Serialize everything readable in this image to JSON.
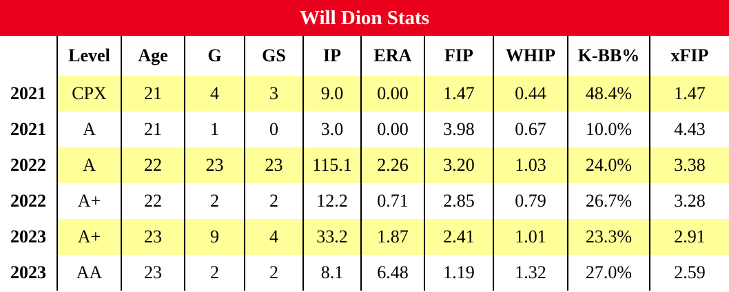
{
  "title": "Will Dion Stats",
  "columns": [
    "",
    "Level",
    "Age",
    "G",
    "GS",
    "IP",
    "ERA",
    "FIP",
    "WHIP",
    "K-BB%",
    "xFIP"
  ],
  "rows": [
    [
      "2021",
      "CPX",
      "21",
      "4",
      "3",
      "9.0",
      "0.00",
      "1.47",
      "0.44",
      "48.4%",
      "1.47"
    ],
    [
      "2021",
      "A",
      "21",
      "1",
      "0",
      "3.0",
      "0.00",
      "3.98",
      "0.67",
      "10.0%",
      "4.43"
    ],
    [
      "2022",
      "A",
      "22",
      "23",
      "23",
      "115.1",
      "2.26",
      "3.20",
      "1.03",
      "24.0%",
      "3.38"
    ],
    [
      "2022",
      "A+",
      "22",
      "2",
      "2",
      "12.2",
      "0.71",
      "2.85",
      "0.79",
      "26.7%",
      "3.28"
    ],
    [
      "2023",
      "A+",
      "23",
      "9",
      "4",
      "33.2",
      "1.87",
      "2.41",
      "1.01",
      "23.3%",
      "2.91"
    ],
    [
      "2023",
      "AA",
      "23",
      "2",
      "2",
      "8.1",
      "6.48",
      "1.19",
      "1.32",
      "27.0%",
      "2.59"
    ]
  ],
  "highlighted_rows": [
    0,
    2,
    4
  ],
  "colors": {
    "title_background": "#e8001c",
    "title_text": "#ffffff",
    "highlight": "#ffff99",
    "grid_line": "#000000"
  }
}
